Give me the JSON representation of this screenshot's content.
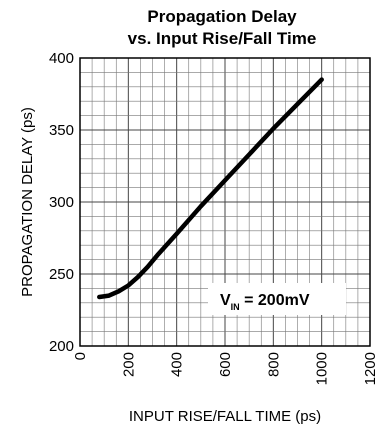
{
  "chart_data": {
    "type": "line",
    "title_lines": [
      "Propagation Delay",
      "vs. Input Rise/Fall Time"
    ],
    "xlabel": "INPUT RISE/FALL TIME (ps)",
    "ylabel": "PROPAGATION DELAY (ps)",
    "xlim": [
      0,
      1200
    ],
    "ylim": [
      200,
      400
    ],
    "x_ticks": [
      "0",
      "200",
      "400",
      "600",
      "800",
      "1000",
      "1200"
    ],
    "y_ticks": [
      "200",
      "250",
      "300",
      "350",
      "400"
    ],
    "grid": true,
    "series": [
      {
        "color": "#000000",
        "x": [
          80,
          120,
          160,
          200,
          240,
          280,
          320,
          400,
          500,
          600,
          700,
          800,
          900,
          1000
        ],
        "y": [
          234,
          235,
          238,
          242,
          248,
          255,
          263,
          278,
          297,
          315,
          333,
          351,
          368,
          385
        ]
      }
    ],
    "annotation": {
      "main": "V",
      "subscript": "IN",
      "suffix": " = 200mV"
    }
  }
}
